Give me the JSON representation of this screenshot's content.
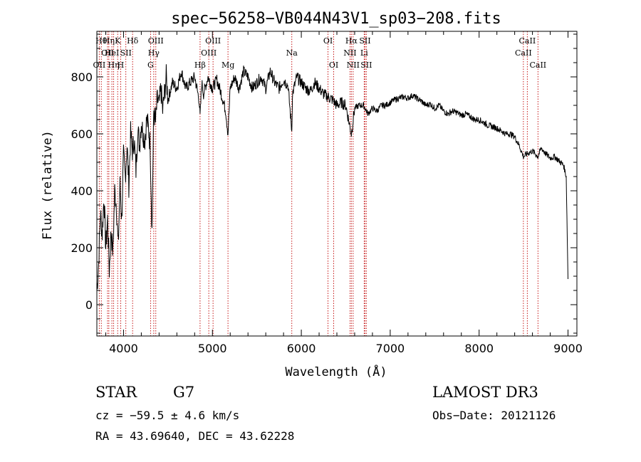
{
  "chart_data": {
    "type": "line",
    "title": "spec−56258−VB044N43V1_sp03−208.fits",
    "xlabel": "Wavelength (Å)",
    "ylabel": "Flux (relative)",
    "xlim": [
      3700,
      9100
    ],
    "ylim": [
      -110,
      960
    ],
    "xticks": [
      4000,
      5000,
      6000,
      7000,
      8000,
      9000
    ],
    "xminor_step": 200,
    "yticks": [
      0,
      200,
      400,
      600,
      800
    ],
    "yminor_step": 50,
    "grid": false,
    "series": [
      {
        "name": "flux",
        "x": [
          3700,
          3720,
          3740,
          3760,
          3780,
          3800,
          3820,
          3840,
          3860,
          3880,
          3900,
          3920,
          3940,
          3960,
          3980,
          4000,
          4020,
          4040,
          4060,
          4080,
          4100,
          4120,
          4140,
          4160,
          4180,
          4200,
          4220,
          4240,
          4260,
          4280,
          4300,
          4320,
          4340,
          4360,
          4380,
          4400,
          4420,
          4440,
          4460,
          4480,
          4500,
          4550,
          4600,
          4650,
          4700,
          4750,
          4800,
          4850,
          4861,
          4880,
          4900,
          4950,
          5000,
          5050,
          5100,
          5150,
          5175,
          5200,
          5250,
          5300,
          5350,
          5400,
          5450,
          5500,
          5550,
          5600,
          5650,
          5700,
          5750,
          5800,
          5850,
          5893,
          5900,
          5950,
          6000,
          6050,
          6100,
          6150,
          6200,
          6250,
          6300,
          6350,
          6400,
          6450,
          6500,
          6563,
          6600,
          6650,
          6700,
          6750,
          6800,
          6850,
          6900,
          6950,
          7000,
          7050,
          7100,
          7150,
          7200,
          7250,
          7300,
          7350,
          7400,
          7450,
          7500,
          7550,
          7600,
          7650,
          7700,
          7750,
          7800,
          7850,
          7900,
          7950,
          8000,
          8050,
          8100,
          8150,
          8200,
          8250,
          8300,
          8350,
          8400,
          8450,
          8498,
          8542,
          8600,
          8662,
          8700,
          8750,
          8800,
          8850,
          8900,
          8950,
          8980,
          9000
        ],
        "y": [
          50,
          150,
          320,
          250,
          380,
          200,
          300,
          120,
          260,
          180,
          400,
          350,
          200,
          420,
          300,
          520,
          450,
          560,
          420,
          600,
          540,
          580,
          470,
          620,
          560,
          640,
          600,
          580,
          650,
          620,
          560,
          260,
          680,
          640,
          720,
          700,
          760,
          680,
          740,
          800,
          720,
          780,
          760,
          820,
          760,
          780,
          800,
          720,
          660,
          780,
          740,
          800,
          760,
          790,
          740,
          680,
          600,
          760,
          800,
          760,
          820,
          800,
          760,
          780,
          800,
          760,
          820,
          780,
          760,
          790,
          770,
          610,
          740,
          800,
          780,
          760,
          750,
          780,
          760,
          740,
          730,
          720,
          700,
          710,
          700,
          600,
          690,
          700,
          700,
          670,
          690,
          680,
          700,
          700,
          710,
          720,
          725,
          730,
          725,
          735,
          725,
          715,
          700,
          705,
          690,
          700,
          680,
          670,
          680,
          675,
          665,
          670,
          660,
          650,
          650,
          640,
          630,
          625,
          620,
          610,
          600,
          600,
          590,
          560,
          520,
          530,
          540,
          520,
          550,
          530,
          515,
          520,
          505,
          490,
          450,
          90
        ]
      }
    ],
    "lines": [
      {
        "w": 3727,
        "label": "OII",
        "row": 3
      },
      {
        "w": 3750,
        "label": "Hθ",
        "row": 1
      },
      {
        "w": 3820,
        "label": "OII",
        "row": 2
      },
      {
        "w": 3835,
        "label": "Hη",
        "row": 1
      },
      {
        "w": 3869,
        "label": "HeI",
        "row": 2
      },
      {
        "w": 3889,
        "label": "Hη",
        "row": 3
      },
      {
        "w": 3934,
        "label": "K",
        "row": 1
      },
      {
        "w": 3968,
        "label": "H",
        "row": 3
      },
      {
        "w": 4026,
        "label": "SII",
        "row": 2
      },
      {
        "w": 4102,
        "label": "Hδ",
        "row": 1
      },
      {
        "w": 4304,
        "label": "G",
        "row": 3
      },
      {
        "w": 4340,
        "label": "Hγ",
        "row": 2
      },
      {
        "w": 4363,
        "label": "OIII",
        "row": 1
      },
      {
        "w": 4861,
        "label": "Hβ",
        "row": 3
      },
      {
        "w": 4959,
        "label": "OIII",
        "row": 2
      },
      {
        "w": 5007,
        "label": "OIII",
        "row": 1
      },
      {
        "w": 5175,
        "label": "Mg",
        "row": 3
      },
      {
        "w": 5893,
        "label": "Na",
        "row": 2
      },
      {
        "w": 6300,
        "label": "OI",
        "row": 1
      },
      {
        "w": 6364,
        "label": "OI",
        "row": 3
      },
      {
        "w": 6548,
        "label": "NII",
        "row": 2
      },
      {
        "w": 6563,
        "label": "Hα",
        "row": 1
      },
      {
        "w": 6583,
        "label": "NII",
        "row": 3
      },
      {
        "w": 6707,
        "label": "Li",
        "row": 2
      },
      {
        "w": 6716,
        "label": "SII",
        "row": 1
      },
      {
        "w": 6731,
        "label": "SII",
        "row": 3
      },
      {
        "w": 8498,
        "label": "CaII",
        "row": 2
      },
      {
        "w": 8542,
        "label": "CaII",
        "row": 1
      },
      {
        "w": 8662,
        "label": "CaII",
        "row": 3
      }
    ]
  },
  "info": {
    "object_class": "STAR",
    "subclass": "G7",
    "survey": "LAMOST DR3",
    "cz": "cz = −59.5 ± 4.6 km/s",
    "obs_date": "Obs−Date: 20121126",
    "coords": "RA =  43.69640, DEC =  43.62228"
  }
}
